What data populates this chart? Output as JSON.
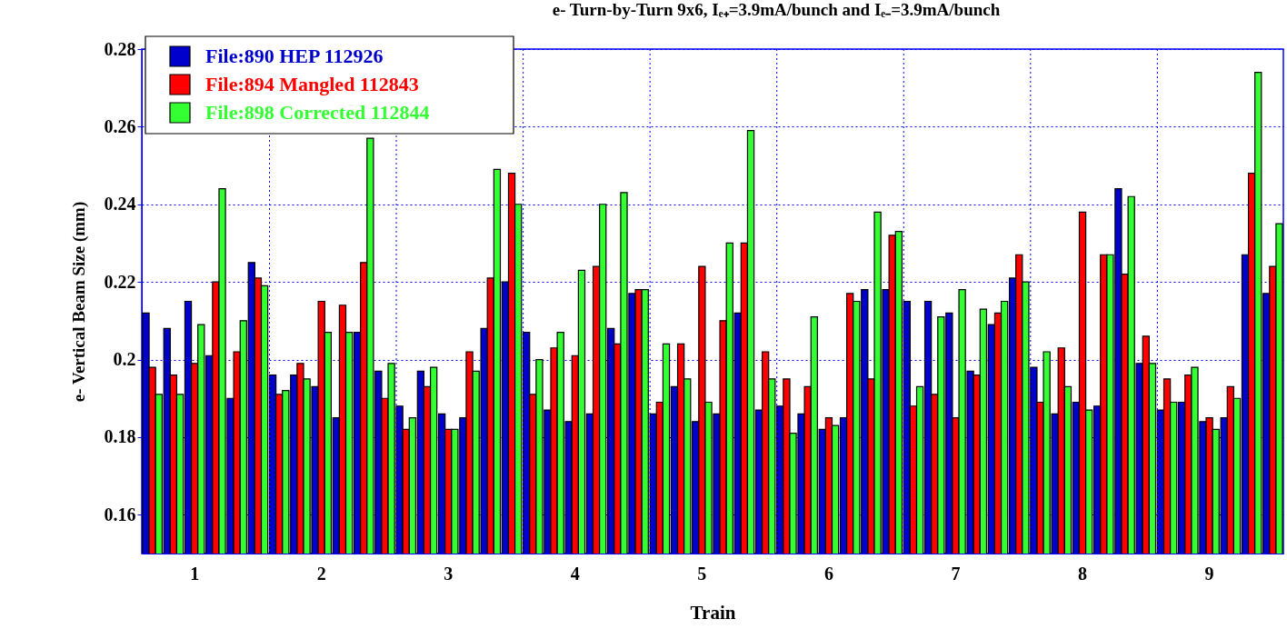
{
  "chart_data": {
    "type": "bar",
    "title": "e- Turn-by-Turn 9x6, Iₑ₊=3.9mA/bunch and Iₑ₋=3.9mA/bunch",
    "xlabel": "Train",
    "ylabel": "e- Vertical Beam Size (mm)",
    "categories": [
      null,
      null,
      "1",
      null,
      null,
      null,
      null,
      null,
      "2",
      null,
      null,
      null,
      null,
      null,
      "3",
      null,
      null,
      null,
      null,
      null,
      "4",
      null,
      null,
      null,
      null,
      null,
      "5",
      null,
      null,
      null,
      null,
      null,
      "6",
      null,
      null,
      null,
      null,
      null,
      "7",
      null,
      null,
      null,
      null,
      null,
      "8",
      null,
      null,
      null,
      null,
      null,
      "9",
      null,
      null,
      null
    ],
    "series": [
      {
        "name": "File:890 HEP 112926",
        "color": "#0000cc",
        "values": [
          0.212,
          0.208,
          0.215,
          0.201,
          0.19,
          0.225,
          0.196,
          0.196,
          0.193,
          0.185,
          0.207,
          0.197,
          0.188,
          0.197,
          0.186,
          0.185,
          0.208,
          0.22,
          0.207,
          0.187,
          0.184,
          0.186,
          0.208,
          0.217,
          0.186,
          0.193,
          0.184,
          0.186,
          0.212,
          0.187,
          0.188,
          0.186,
          0.182,
          0.185,
          0.218,
          0.218,
          0.215,
          0.215,
          0.212,
          0.197,
          0.209,
          0.221,
          0.198,
          0.186,
          0.189,
          0.188,
          0.244,
          0.199,
          0.187,
          0.189,
          0.184,
          0.185,
          0.227,
          0.217
        ]
      },
      {
        "name": "File:894 Mangled 112843",
        "color": "#ff0000",
        "values": [
          0.198,
          0.196,
          0.199,
          0.22,
          0.202,
          0.221,
          0.191,
          0.199,
          0.215,
          0.214,
          0.225,
          0.19,
          0.182,
          0.193,
          0.182,
          0.202,
          0.221,
          0.248,
          0.191,
          0.203,
          0.201,
          0.224,
          0.204,
          0.218,
          0.189,
          0.204,
          0.224,
          0.21,
          0.23,
          0.202,
          0.195,
          0.193,
          0.185,
          0.217,
          0.195,
          0.232,
          0.188,
          0.191,
          0.185,
          0.196,
          0.212,
          0.227,
          0.189,
          0.203,
          0.238,
          0.227,
          0.222,
          0.206,
          0.195,
          0.196,
          0.185,
          0.193,
          0.248,
          0.224
        ]
      },
      {
        "name": "File:898 Corrected 112844",
        "color": "#33ff33",
        "values": [
          0.191,
          0.191,
          0.209,
          0.244,
          0.21,
          0.219,
          0.192,
          0.195,
          0.207,
          0.207,
          0.257,
          0.199,
          0.185,
          0.198,
          0.182,
          0.197,
          0.249,
          0.24,
          0.2,
          0.207,
          0.223,
          0.24,
          0.243,
          0.218,
          0.204,
          0.195,
          0.189,
          0.23,
          0.259,
          0.195,
          0.181,
          0.211,
          0.183,
          0.215,
          0.238,
          0.233,
          0.193,
          0.211,
          0.218,
          0.213,
          0.215,
          0.22,
          0.202,
          0.193,
          0.187,
          0.227,
          0.242,
          0.199,
          0.189,
          0.198,
          0.182,
          0.19,
          0.274,
          0.235
        ]
      }
    ],
    "ylim": [
      0.15,
      0.28
    ],
    "yticks": [
      0.16,
      0.18,
      0.2,
      0.22,
      0.24,
      0.26,
      0.28
    ],
    "grid": true,
    "legend": "top left"
  }
}
